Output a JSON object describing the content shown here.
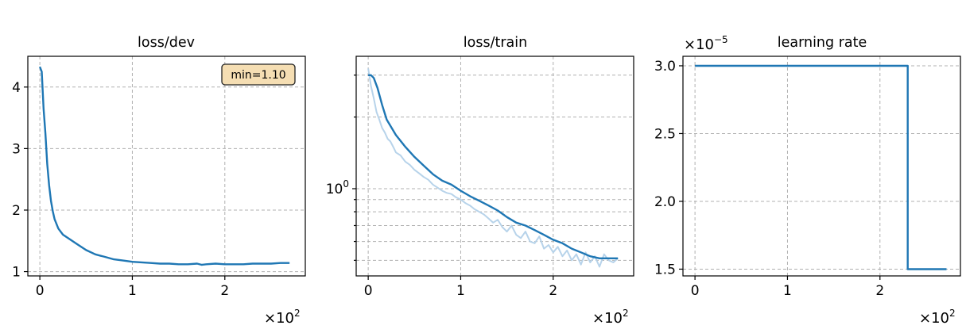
{
  "colors": {
    "line": "#1f77b4",
    "raw_line": "#b7d3ea",
    "annotation_bg": "#f5deb3"
  },
  "chart_data": [
    {
      "type": "line",
      "title": "loss/dev",
      "x_offset_label": "×10",
      "x_offset_exp": "2",
      "xlim": [
        -0.13,
        2.87
      ],
      "ylim": [
        0.93,
        4.5
      ],
      "xticks": [
        {
          "v": 0,
          "label": "0"
        },
        {
          "v": 1,
          "label": "1"
        },
        {
          "v": 2,
          "label": "2"
        }
      ],
      "yticks": [
        {
          "v": 1,
          "label": "1"
        },
        {
          "v": 2,
          "label": "2"
        },
        {
          "v": 3,
          "label": "3"
        },
        {
          "v": 4,
          "label": "4"
        }
      ],
      "annotation": "min=1.10",
      "annotation_position": "top-right",
      "grid": true,
      "series": [
        {
          "x": [
            0,
            0.02,
            0.04,
            0.06,
            0.08,
            0.1,
            0.12,
            0.14,
            0.16,
            0.2,
            0.25,
            0.3,
            0.4,
            0.5,
            0.6,
            0.7,
            0.8,
            0.9,
            1.0,
            1.1,
            1.2,
            1.3,
            1.4,
            1.5,
            1.6,
            1.7,
            1.75,
            1.8,
            1.9,
            2.0,
            2.1,
            2.2,
            2.3,
            2.4,
            2.5,
            2.6,
            2.7
          ],
          "y": [
            4.33,
            4.25,
            3.65,
            3.25,
            2.75,
            2.4,
            2.15,
            1.98,
            1.85,
            1.7,
            1.6,
            1.55,
            1.45,
            1.35,
            1.28,
            1.24,
            1.2,
            1.18,
            1.16,
            1.15,
            1.14,
            1.13,
            1.13,
            1.12,
            1.12,
            1.13,
            1.11,
            1.12,
            1.13,
            1.12,
            1.12,
            1.12,
            1.13,
            1.13,
            1.13,
            1.14,
            1.14
          ]
        }
      ]
    },
    {
      "type": "line",
      "title": "loss/train",
      "x_offset_label": "×10",
      "x_offset_exp": "2",
      "xlim": [
        -0.13,
        2.87
      ],
      "ylim": [
        0.43,
        3.6
      ],
      "yscale": "log",
      "xticks": [
        {
          "v": 0,
          "label": "0"
        },
        {
          "v": 1,
          "label": "1"
        },
        {
          "v": 2,
          "label": "2"
        }
      ],
      "yticks": [
        {
          "v": 1,
          "base": "10",
          "exp": "0"
        }
      ],
      "minor_yticks": [
        0.5,
        0.6,
        0.7,
        0.8,
        0.9,
        2,
        3
      ],
      "grid": true,
      "series": [
        {
          "x": [
            0,
            0.03,
            0.06,
            0.1,
            0.15,
            0.2,
            0.3,
            0.4,
            0.5,
            0.6,
            0.7,
            0.8,
            0.9,
            1.0,
            1.1,
            1.2,
            1.3,
            1.4,
            1.5,
            1.6,
            1.7,
            1.8,
            1.9,
            2.0,
            2.1,
            2.2,
            2.3,
            2.4,
            2.5,
            2.6,
            2.7
          ],
          "y": [
            3.0,
            3.0,
            2.92,
            2.65,
            2.25,
            1.95,
            1.68,
            1.5,
            1.36,
            1.25,
            1.15,
            1.08,
            1.04,
            0.98,
            0.93,
            0.89,
            0.85,
            0.81,
            0.76,
            0.72,
            0.7,
            0.67,
            0.64,
            0.61,
            0.59,
            0.56,
            0.54,
            0.52,
            0.51,
            0.51,
            0.51
          ]
        }
      ],
      "raw": {
        "x": [
          0,
          0.03,
          0.06,
          0.09,
          0.12,
          0.15,
          0.18,
          0.21,
          0.24,
          0.27,
          0.3,
          0.35,
          0.4,
          0.45,
          0.5,
          0.55,
          0.6,
          0.65,
          0.7,
          0.75,
          0.8,
          0.85,
          0.9,
          0.95,
          1.0,
          1.05,
          1.1,
          1.15,
          1.2,
          1.25,
          1.3,
          1.35,
          1.4,
          1.45,
          1.5,
          1.55,
          1.6,
          1.65,
          1.7,
          1.75,
          1.8,
          1.85,
          1.9,
          1.95,
          2.0,
          2.05,
          2.1,
          2.15,
          2.2,
          2.25,
          2.3,
          2.35,
          2.4,
          2.45,
          2.5,
          2.55,
          2.6,
          2.65,
          2.7
        ],
        "y": [
          3.2,
          2.7,
          2.4,
          2.1,
          1.95,
          1.8,
          1.72,
          1.62,
          1.58,
          1.5,
          1.42,
          1.38,
          1.3,
          1.26,
          1.2,
          1.16,
          1.12,
          1.09,
          1.04,
          1.01,
          0.98,
          0.96,
          0.95,
          0.92,
          0.9,
          0.87,
          0.85,
          0.82,
          0.8,
          0.78,
          0.75,
          0.72,
          0.74,
          0.69,
          0.66,
          0.7,
          0.64,
          0.62,
          0.66,
          0.6,
          0.59,
          0.63,
          0.56,
          0.58,
          0.54,
          0.57,
          0.52,
          0.55,
          0.5,
          0.53,
          0.48,
          0.54,
          0.49,
          0.52,
          0.47,
          0.53,
          0.5,
          0.49,
          0.51
        ]
      }
    },
    {
      "type": "line",
      "title": "learning rate",
      "x_offset_label": "×10",
      "x_offset_exp": "2",
      "y_offset_label": "×10",
      "y_offset_exp": "−5",
      "xlim": [
        -0.13,
        2.87
      ],
      "ylim": [
        1.45,
        3.07
      ],
      "xticks": [
        {
          "v": 0,
          "label": "0"
        },
        {
          "v": 1,
          "label": "1"
        },
        {
          "v": 2,
          "label": "2"
        }
      ],
      "yticks": [
        {
          "v": 1.5,
          "label": "1.5"
        },
        {
          "v": 2.0,
          "label": "2.0"
        },
        {
          "v": 2.5,
          "label": "2.5"
        },
        {
          "v": 3.0,
          "label": "3.0"
        }
      ],
      "grid": true,
      "series": [
        {
          "x": [
            0,
            2.3,
            2.3,
            2.72
          ],
          "y": [
            3.0,
            3.0,
            1.5,
            1.5
          ]
        }
      ]
    }
  ]
}
